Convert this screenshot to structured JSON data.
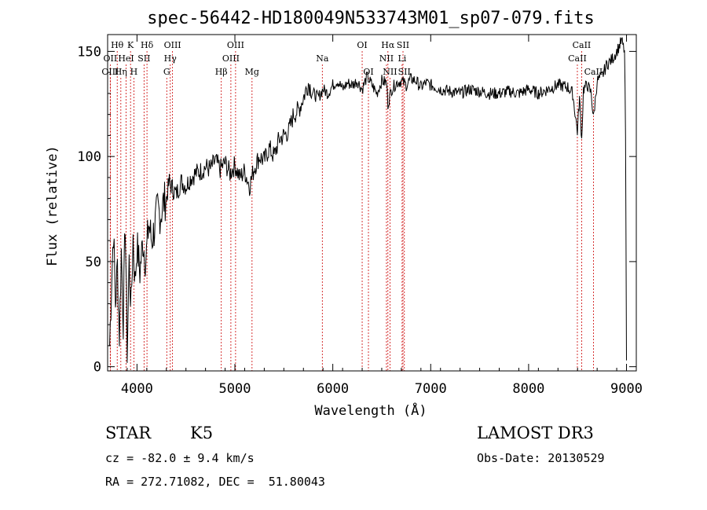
{
  "chart_data": {
    "type": "line",
    "title": "spec-56442-HD180049N533743M01_sp07-079.fits",
    "xlabel": "Wavelength (Å)",
    "ylabel": "Flux (relative)",
    "xlim": [
      3700,
      9100
    ],
    "ylim": [
      -2,
      158
    ],
    "xticks": [
      4000,
      5000,
      6000,
      7000,
      8000,
      9000
    ],
    "yticks": [
      0,
      50,
      100,
      150
    ],
    "series": [
      {
        "name": "spectrum",
        "x": [
          3720,
          3740,
          3760,
          3780,
          3800,
          3820,
          3840,
          3860,
          3880,
          3900,
          3920,
          3940,
          3960,
          3980,
          4000,
          4030,
          4060,
          4090,
          4120,
          4150,
          4180,
          4210,
          4240,
          4270,
          4300,
          4330,
          4360,
          4400,
          4450,
          4500,
          4550,
          4600,
          4650,
          4700,
          4750,
          4800,
          4850,
          4900,
          4950,
          5000,
          5050,
          5100,
          5150,
          5200,
          5250,
          5300,
          5350,
          5400,
          5450,
          5500,
          5550,
          5600,
          5650,
          5700,
          5750,
          5800,
          5850,
          5900,
          5950,
          6000,
          6050,
          6100,
          6150,
          6200,
          6250,
          6300,
          6350,
          6400,
          6450,
          6500,
          6550,
          6563,
          6600,
          6650,
          6700,
          6750,
          6800,
          6850,
          6900,
          6950,
          7000,
          7100,
          7200,
          7300,
          7400,
          7500,
          7600,
          7700,
          7800,
          7900,
          8000,
          8100,
          8200,
          8300,
          8400,
          8450,
          8498,
          8520,
          8542,
          8560,
          8600,
          8640,
          8662,
          8700,
          8750,
          8800,
          8850,
          8900,
          8950,
          8980,
          8990,
          9000
        ],
        "values": [
          10,
          40,
          65,
          30,
          48,
          15,
          55,
          22,
          70,
          8,
          50,
          28,
          62,
          40,
          58,
          45,
          60,
          50,
          68,
          60,
          66,
          75,
          72,
          78,
          80,
          88,
          85,
          82,
          88,
          86,
          90,
          92,
          93,
          95,
          94,
          98,
          94,
          97,
          92,
          96,
          90,
          93,
          86,
          95,
          100,
          98,
          104,
          100,
          108,
          110,
          112,
          120,
          122,
          128,
          135,
          130,
          128,
          132,
          130,
          134,
          136,
          132,
          135,
          134,
          136,
          132,
          138,
          134,
          130,
          136,
          135,
          125,
          132,
          135,
          136,
          134,
          137,
          136,
          133,
          135,
          134,
          132,
          131,
          130,
          132,
          131,
          130,
          130,
          131,
          130,
          132,
          130,
          132,
          134,
          133,
          130,
          112,
          128,
          108,
          132,
          134,
          130,
          118,
          136,
          138,
          144,
          146,
          150,
          155,
          150,
          110,
          3
        ]
      }
    ],
    "spectral_lines": [
      {
        "label": "Hθ",
        "x": 3798,
        "row": 1
      },
      {
        "label": "OII",
        "x": 3727,
        "row": 2
      },
      {
        "label": "OIII",
        "x": 3727,
        "row": 3
      },
      {
        "label": "K",
        "x": 3934,
        "row": 1
      },
      {
        "label": "HeI",
        "x": 3889,
        "row": 2
      },
      {
        "label": "Hη",
        "x": 3835,
        "row": 3
      },
      {
        "label": "H",
        "x": 3968,
        "row": 3
      },
      {
        "label": "Hδ",
        "x": 4102,
        "row": 1
      },
      {
        "label": "SII",
        "x": 4072,
        "row": 2
      },
      {
        "label": "OIII",
        "x": 4363,
        "row": 1
      },
      {
        "label": "Hγ",
        "x": 4340,
        "row": 2
      },
      {
        "label": "G",
        "x": 4304,
        "row": 3
      },
      {
        "label": "OIII",
        "x": 5007,
        "row": 1
      },
      {
        "label": "OIII",
        "x": 4959,
        "row": 2
      },
      {
        "label": "Hβ",
        "x": 4861,
        "row": 3
      },
      {
        "label": "Mg",
        "x": 5175,
        "row": 3
      },
      {
        "label": "Na",
        "x": 5893,
        "row": 2
      },
      {
        "label": "OI",
        "x": 6300,
        "row": 1
      },
      {
        "label": "OI",
        "x": 6364,
        "row": 3
      },
      {
        "label": "Hα",
        "x": 6563,
        "row": 1
      },
      {
        "label": "SII",
        "x": 6717,
        "row": 1
      },
      {
        "label": "NII",
        "x": 6548,
        "row": 2
      },
      {
        "label": "Li",
        "x": 6708,
        "row": 2
      },
      {
        "label": "NII",
        "x": 6584,
        "row": 3
      },
      {
        "label": "SII",
        "x": 6731,
        "row": 3
      },
      {
        "label": "CaII",
        "x": 8542,
        "row": 1
      },
      {
        "label": "CaII",
        "x": 8498,
        "row": 2
      },
      {
        "label": "CaII",
        "x": 8662,
        "row": 3
      }
    ]
  },
  "info": {
    "object_class": "STAR",
    "subclass": "K5",
    "survey": "LAMOST DR3",
    "cz": "cz = -82.0 ± 9.4 km/s",
    "obs_date": "Obs-Date: 20130529",
    "coords": "RA = 272.71082, DEC =  51.80043"
  }
}
